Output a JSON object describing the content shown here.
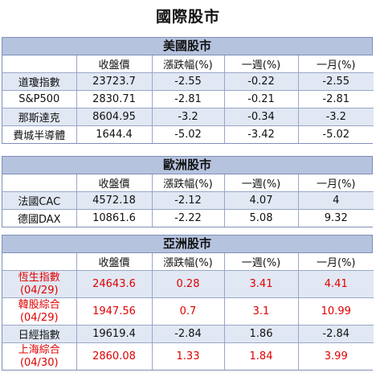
{
  "title": "國際股市",
  "columns": [
    "",
    "收盤價",
    "漲跌幅(%)",
    "一週(%)",
    "一月(%)"
  ],
  "us": {
    "heading": "美國股市",
    "rows": [
      {
        "name": "道瓊指數",
        "close": "23723.7",
        "chg": "-2.55",
        "week": "-0.22",
        "month": "-2.55"
      },
      {
        "name": "S&P500",
        "close": "2830.71",
        "chg": "-2.81",
        "week": "-0.21",
        "month": "-2.81"
      },
      {
        "name": "那斯達克",
        "close": "8604.95",
        "chg": "-3.2",
        "week": "-0.34",
        "month": "-3.2"
      },
      {
        "name": "費城半導體",
        "close": "1644.4",
        "chg": "-5.02",
        "week": "-3.42",
        "month": "-5.02"
      }
    ]
  },
  "eu": {
    "heading": "歐洲股市",
    "rows": [
      {
        "name": "法國CAC",
        "close": "4572.18",
        "chg": "-2.12",
        "week": "4.07",
        "month": "4"
      },
      {
        "name": "德國DAX",
        "close": "10861.6",
        "chg": "-2.22",
        "week": "5.08",
        "month": "9.32"
      }
    ]
  },
  "asia": {
    "heading": "亞洲股市",
    "rows": [
      {
        "name": "恆生指數",
        "date": "(04/29)",
        "close": "24643.6",
        "chg": "0.28",
        "week": "3.41",
        "month": "4.41",
        "color": "#e00000"
      },
      {
        "name": "韓股綜合",
        "date": "(04/29)",
        "close": "1947.56",
        "chg": "0.7",
        "week": "3.1",
        "month": "10.99",
        "color": "#e00000"
      },
      {
        "name": "日經指數",
        "date": "",
        "close": "19619.4",
        "chg": "-2.84",
        "week": "1.86",
        "month": "-2.84",
        "color": "#111111"
      },
      {
        "name": "上海綜合",
        "date": "(04/30)",
        "close": "2860.08",
        "chg": "1.33",
        "week": "1.84",
        "month": "3.99",
        "color": "#e00000"
      }
    ]
  }
}
